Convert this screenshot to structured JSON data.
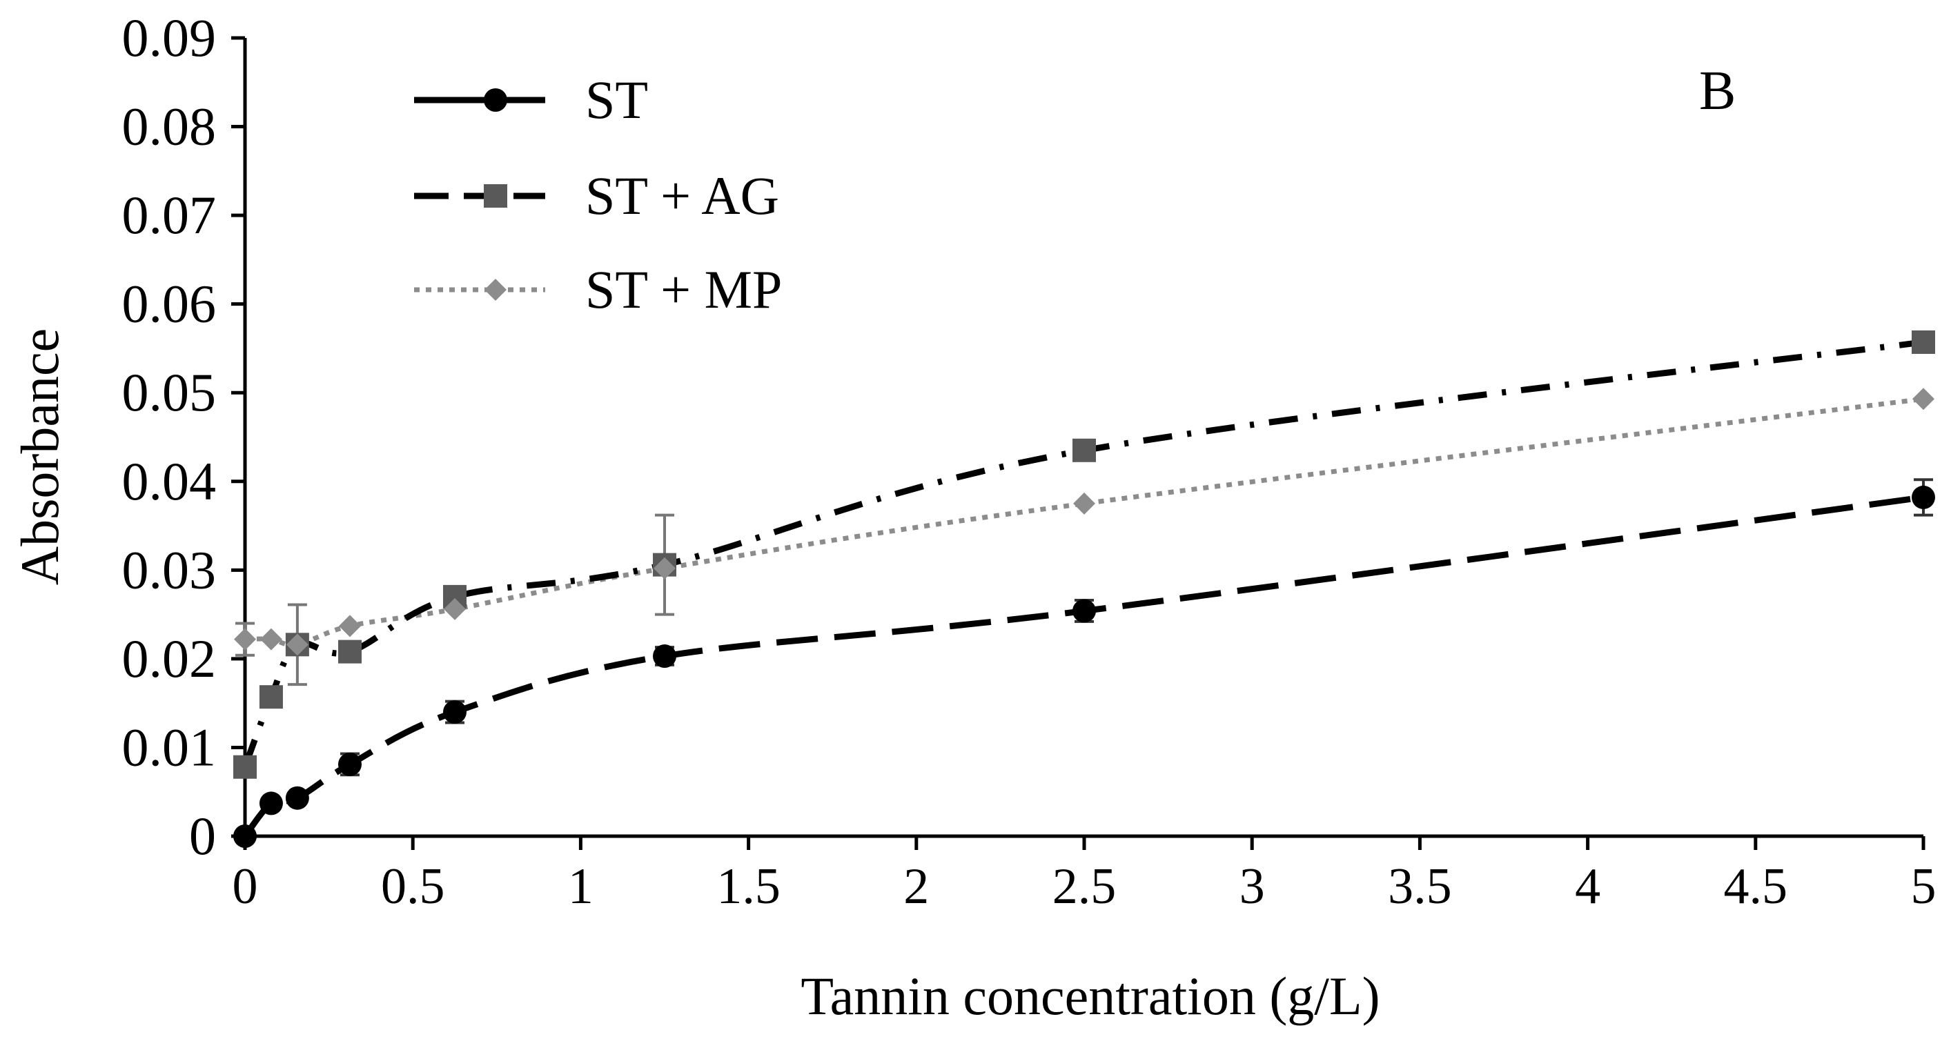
{
  "chart_data": {
    "type": "line",
    "panel_label": "B",
    "xlabel": "Tannin concentration (g/L)",
    "ylabel": "Absorbance",
    "xlim": [
      0,
      5
    ],
    "ylim": [
      0,
      0.09
    ],
    "x_ticks": [
      0,
      0.5,
      1,
      1.5,
      2,
      2.5,
      3,
      3.5,
      4,
      4.5,
      5
    ],
    "x_tick_labels": [
      "0",
      "0.5",
      "1",
      "1.5",
      "2",
      "2.5",
      "3",
      "3.5",
      "4",
      "4.5",
      "5"
    ],
    "y_ticks": [
      0,
      0.01,
      0.02,
      0.03,
      0.04,
      0.05,
      0.06,
      0.07,
      0.08,
      0.09
    ],
    "y_tick_labels": [
      "0",
      "0.01",
      "0.02",
      "0.03",
      "0.04",
      "0.05",
      "0.06",
      "0.07",
      "0.08",
      "0.09"
    ],
    "grid": false,
    "legend_position": "top-left",
    "series": [
      {
        "name": "ST",
        "marker": "circle",
        "color": "#000000",
        "x": [
          0,
          0.078,
          0.156,
          0.3125,
          0.625,
          1.25,
          2.5,
          5
        ],
        "values": [
          0.0,
          0.0037,
          0.0043,
          0.0081,
          0.014,
          0.0203,
          0.0254,
          0.0382
        ],
        "errors": [
          0.0,
          0.0,
          0.0,
          0.0012,
          0.0012,
          0.001,
          0.0012,
          0.002
        ]
      },
      {
        "name": "ST + AG",
        "marker": "square",
        "color": "#595959",
        "x": [
          0,
          0.078,
          0.156,
          0.3125,
          0.625,
          1.25,
          2.5,
          5
        ],
        "values": [
          0.0078,
          0.0157,
          0.0216,
          0.0208,
          0.027,
          0.0306,
          0.0435,
          0.0557
        ],
        "errors": [
          0.0,
          0.0,
          0.0045,
          0.0,
          0.0,
          0.0056,
          0.0,
          0.0
        ]
      },
      {
        "name": "ST + MP",
        "marker": "diamond",
        "color": "#8c8c8c",
        "x": [
          0,
          0.078,
          0.156,
          0.3125,
          0.625,
          1.25,
          2.5,
          5
        ],
        "values": [
          0.0222,
          0.0222,
          0.0216,
          0.0237,
          0.0256,
          0.0302,
          0.0375,
          0.0493
        ],
        "errors": [
          0.0018,
          0.0,
          0.0,
          0.0,
          0.0,
          0.0,
          0.0,
          0.0
        ]
      }
    ]
  }
}
